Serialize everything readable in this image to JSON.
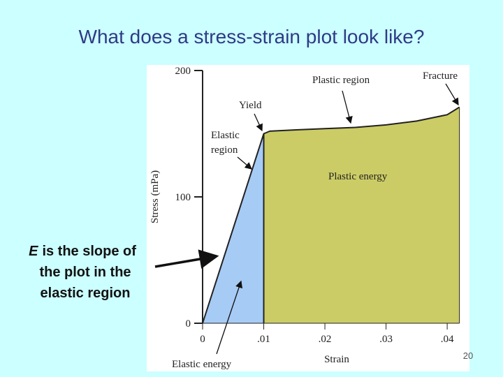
{
  "chart_data": {
    "type": "line",
    "title": "What does a stress-strain plot look like?",
    "x": [
      0,
      0.01,
      0.011,
      0.015,
      0.02,
      0.025,
      0.03,
      0.035,
      0.04,
      0.042
    ],
    "series": [
      {
        "name": "Stress",
        "color": "#222222",
        "values": [
          0,
          150,
          152,
          153,
          154,
          155,
          157,
          160,
          165,
          171
        ]
      }
    ],
    "elastic_color": "#a6cbf5",
    "plastic_color": "#cccc66",
    "xlim": [
      0,
      0.0425
    ],
    "ylim": [
      0,
      200
    ],
    "xticks": [
      0,
      {
        "value": 0.01,
        "label": ".01"
      },
      {
        "value": 0.02,
        "label": ".02"
      },
      {
        "value": 0.03,
        "label": ".03"
      },
      {
        "value": 0.04,
        "label": ".04"
      }
    ],
    "yticks": [
      0,
      100,
      200
    ],
    "xlabel": "Strain",
    "ylabel": "Stress (mPa)",
    "annotations": {
      "plastic_region": [
        "Plastic region"
      ],
      "fracture": [
        "Fracture"
      ],
      "yield": [
        "Yield"
      ],
      "elastic_region": [
        "Elastic",
        "region"
      ],
      "plastic_energy": [
        "Plastic energy"
      ],
      "elastic_energy": [
        "Elastic energy"
      ]
    },
    "side_note": {
      "emphasis": "E",
      "lines": [
        "is the slope of",
        "the plot in the",
        "elastic region"
      ]
    }
  },
  "page_number": "20"
}
